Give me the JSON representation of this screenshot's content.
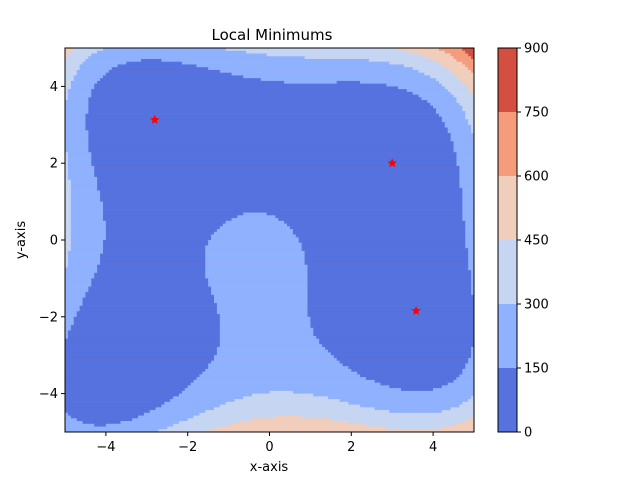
{
  "chart_data": {
    "type": "contourf",
    "title": "Local Minimums",
    "xlabel": "x-axis",
    "ylabel": "y-axis",
    "xlim": [
      -5,
      5
    ],
    "ylim": [
      -5,
      5
    ],
    "xticks": [
      "−4",
      "−2",
      "0",
      "2",
      "4"
    ],
    "yticks": [
      "−4",
      "−2",
      "0",
      "2",
      "4"
    ],
    "xtick_values": [
      -4,
      -2,
      0,
      2,
      4
    ],
    "ytick_values": [
      -4,
      -2,
      0,
      2,
      4
    ],
    "colorbar": {
      "levels": [
        0,
        150,
        300,
        450,
        600,
        750,
        900
      ],
      "labels": [
        "0",
        "150",
        "300",
        "450",
        "600",
        "750",
        "900"
      ],
      "colors": [
        "#5572df",
        "#8fb1fe",
        "#c5d5f2",
        "#f1cdbb",
        "#f59c7d",
        "#d44e41"
      ]
    },
    "minima_markers": [
      {
        "x": -2.805,
        "y": 3.131
      },
      {
        "x": 3.0,
        "y": 2.0
      },
      {
        "x": 3.584,
        "y": -1.848
      }
    ],
    "marker_color": "#ff0000",
    "grid": false
  }
}
